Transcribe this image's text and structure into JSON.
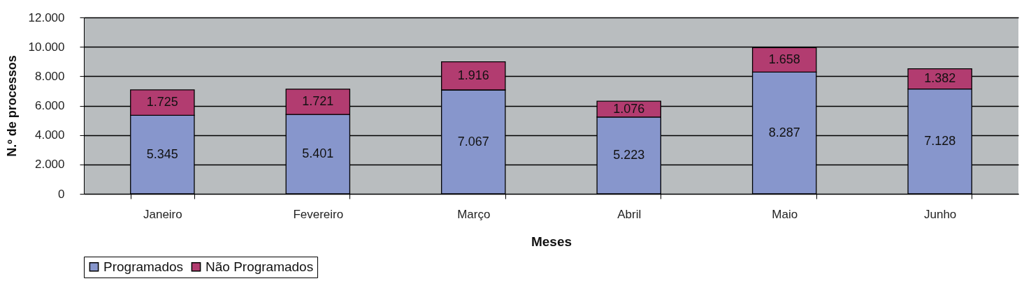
{
  "chart_data": {
    "type": "bar",
    "stacked": true,
    "xlabel": "Meses",
    "ylabel": "N.º de processos",
    "categories": [
      "Janeiro",
      "Fevereiro",
      "Março",
      "Abril",
      "Maio",
      "Junho"
    ],
    "series": [
      {
        "name": "Programados",
        "color": "#8796cc",
        "values": [
          5345,
          5401,
          7067,
          5223,
          8287,
          7128
        ],
        "value_labels": [
          "5.345",
          "5.401",
          "7.067",
          "5.223",
          "8.287",
          "7.128"
        ]
      },
      {
        "name": "Não Programados",
        "color": "#b23c70",
        "values": [
          1725,
          1721,
          1916,
          1076,
          1658,
          1382
        ],
        "value_labels": [
          "1.725",
          "1.721",
          "1.916",
          "1.076",
          "1.658",
          "1.382"
        ]
      }
    ],
    "ylim": [
      0,
      12000
    ],
    "yticks": [
      0,
      {
        "value": 2000,
        "label": "2.000"
      },
      {
        "value": 4000,
        "label": "4.000"
      },
      {
        "value": 6000,
        "label": "6.000"
      },
      {
        "value": 8000,
        "label": "8.000"
      },
      {
        "value": 10000,
        "label": "10.000"
      },
      {
        "value": 12000,
        "label": "12.000"
      }
    ],
    "grid": "y",
    "legend": "bottom"
  }
}
